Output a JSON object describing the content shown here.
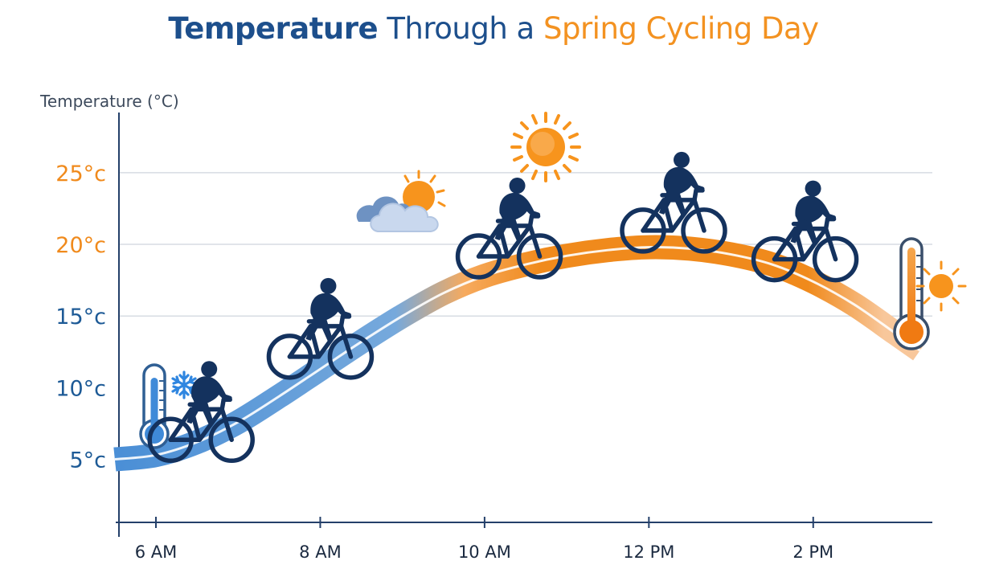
{
  "title": {
    "part1": "Temperature",
    "part2": " Through a ",
    "part3": "Spring Cycling Day"
  },
  "chart_data": {
    "type": "line",
    "title": "Temperature Through a Spring Cycling Day",
    "ylabel": "Temperature (°C)",
    "xlabel": "",
    "x_ticks": [
      {
        "label": "6 AM",
        "value": 6
      },
      {
        "label": "8 AM",
        "value": 8
      },
      {
        "label": "10 AM",
        "value": 10
      },
      {
        "label": "12 PM",
        "value": 12
      },
      {
        "label": "2 PM",
        "value": 14
      }
    ],
    "y_ticks": [
      {
        "label": "5°c",
        "value": 5,
        "color": "#1d5a96"
      },
      {
        "label": "10°c",
        "value": 10,
        "color": "#1d5a96"
      },
      {
        "label": "15°c",
        "value": 15,
        "color": "#1d5a96"
      },
      {
        "label": "20°c",
        "value": 20,
        "color": "#f08a1c"
      },
      {
        "label": "25°c",
        "value": 25,
        "color": "#f08a1c"
      }
    ],
    "gridlines_at": [
      15,
      20,
      25
    ],
    "xlim": [
      5.55,
      15.45
    ],
    "ylim": [
      0.6,
      29.2
    ],
    "series": [
      {
        "x": [
          5.5,
          6,
          6.5,
          7,
          7.5,
          8,
          8.5,
          9,
          9.5,
          10,
          10.5,
          11,
          11.5,
          12,
          12.5,
          13,
          13.5,
          14,
          14.5,
          15,
          15.3
        ],
        "values": [
          5,
          5.3,
          6.2,
          7.6,
          9.4,
          11.3,
          13.2,
          15,
          16.6,
          17.8,
          18.6,
          19.2,
          19.6,
          19.8,
          19.7,
          19.3,
          18.6,
          17.4,
          15.8,
          13.8,
          12.6
        ]
      }
    ],
    "cyclists_at": [
      {
        "x": 6.55,
        "y": 5.8
      },
      {
        "x": 8.0,
        "y": 11.6
      },
      {
        "x": 10.3,
        "y": 18.6
      },
      {
        "x": 12.3,
        "y": 20.4
      },
      {
        "x": 13.9,
        "y": 18.4
      }
    ],
    "colors": {
      "cold": "#4b8fd6",
      "warm": "#f08a1c",
      "axis": "#24406a",
      "grid": "#d7dce3",
      "rider": "#14325e",
      "sun": "#f7941d"
    },
    "icons": [
      "cold-thermometer-icon",
      "snowflake-icon",
      "cloud-sun-icon",
      "sun-icon",
      "hot-thermometer-icon",
      "small-sun-icon",
      "cyclist-icon"
    ]
  }
}
